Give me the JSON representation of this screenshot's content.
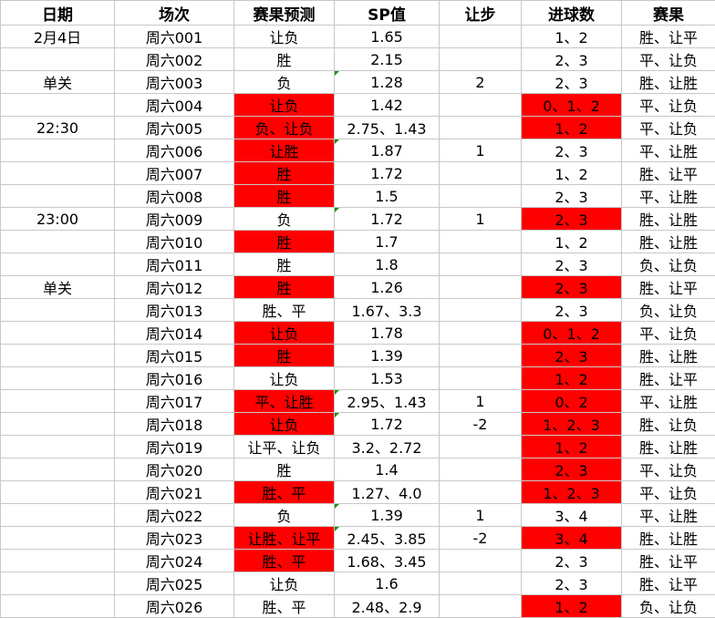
{
  "headers": [
    "日期",
    "场次",
    "赛果预测",
    "SP值",
    "让步",
    "进球数",
    "赛果"
  ],
  "highlight_color": "#ff0000",
  "rows": [
    {
      "date": "2月4日",
      "match": "周六001",
      "pred": "让负",
      "sp": "1.65",
      "hcp": "",
      "goals": "1、2",
      "result": "胜、让平"
    },
    {
      "date": "",
      "match": "周六002",
      "pred": "胜",
      "sp": "2.15",
      "hcp": "",
      "goals": "2、3",
      "result": "平、让负"
    },
    {
      "date": "单关",
      "match": "周六003",
      "pred": "负",
      "sp": "1.28",
      "hcp": "2",
      "goals": "2、3",
      "result": "胜、让胜"
    },
    {
      "date": "",
      "match": "周六004",
      "pred": "让负",
      "sp": "1.42",
      "hcp": "",
      "goals": "0、1、2",
      "result": "平、让负"
    },
    {
      "date": "22:30",
      "match": "周六005",
      "pred": "负、让负",
      "sp": "2.75、1.43",
      "hcp": "",
      "goals": "1、2",
      "result": "平、让负"
    },
    {
      "date": "",
      "match": "周六006",
      "pred": "让胜",
      "sp": "1.87",
      "hcp": "1",
      "goals": "2、3",
      "result": "平、让胜"
    },
    {
      "date": "",
      "match": "周六007",
      "pred": "胜",
      "sp": "1.72",
      "hcp": "",
      "goals": "1、2",
      "result": "胜、让平"
    },
    {
      "date": "",
      "match": "周六008",
      "pred": "胜",
      "sp": "1.5",
      "hcp": "",
      "goals": "2、3",
      "result": "平、让胜"
    },
    {
      "date": "23:00",
      "match": "周六009",
      "pred": "负",
      "sp": "1.72",
      "hcp": "1",
      "goals": "2、3",
      "result": "胜、让胜"
    },
    {
      "date": "",
      "match": "周六010",
      "pred": "胜",
      "sp": "1.7",
      "hcp": "",
      "goals": "1、2",
      "result": "胜、让胜"
    },
    {
      "date": "",
      "match": "周六011",
      "pred": "胜",
      "sp": "1.8",
      "hcp": "",
      "goals": "2、3",
      "result": "负、让负"
    },
    {
      "date": "单关",
      "match": "周六012",
      "pred": "胜",
      "sp": "1.26",
      "hcp": "",
      "goals": "2、3",
      "result": "胜、让平"
    },
    {
      "date": "",
      "match": "周六013",
      "pred": "胜、平",
      "sp": "1.67、3.3",
      "hcp": "",
      "goals": "2、3",
      "result": "负、让负"
    },
    {
      "date": "",
      "match": "周六014",
      "pred": "让负",
      "sp": "1.78",
      "hcp": "",
      "goals": "0、1、2",
      "result": "平、让负"
    },
    {
      "date": "",
      "match": "周六015",
      "pred": "胜",
      "sp": "1.39",
      "hcp": "",
      "goals": "2、3",
      "result": "胜、让胜"
    },
    {
      "date": "",
      "match": "周六016",
      "pred": "让负",
      "sp": "1.53",
      "hcp": "",
      "goals": "1、2",
      "result": "胜、让平"
    },
    {
      "date": "",
      "match": "周六017",
      "pred": "平、让胜",
      "sp": "2.95、1.43",
      "hcp": "1",
      "goals": "0、2",
      "result": "平、让胜"
    },
    {
      "date": "",
      "match": "周六018",
      "pred": "让负",
      "sp": "1.72",
      "hcp": "-2",
      "goals": "1、2、3",
      "result": "胜、让负"
    },
    {
      "date": "",
      "match": "周六019",
      "pred": "让平、让负",
      "sp": "3.2、2.72",
      "hcp": "",
      "goals": "1、2",
      "result": "胜、让胜"
    },
    {
      "date": "",
      "match": "周六020",
      "pred": "胜",
      "sp": "1.4",
      "hcp": "",
      "goals": "2、3",
      "result": "平、让负"
    },
    {
      "date": "",
      "match": "周六021",
      "pred": "胜、平",
      "sp": "1.27、4.0",
      "hcp": "",
      "goals": "1、2、3",
      "result": "平、让负"
    },
    {
      "date": "",
      "match": "周六022",
      "pred": "负",
      "sp": "1.39",
      "hcp": "1",
      "goals": "3、4",
      "result": "平、让胜"
    },
    {
      "date": "",
      "match": "周六023",
      "pred": "让胜、让平",
      "sp": "2.45、3.85",
      "hcp": "-2",
      "goals": "3、4",
      "result": "胜、让胜"
    },
    {
      "date": "",
      "match": "周六024",
      "pred": "胜、平",
      "sp": "1.68、3.45",
      "hcp": "",
      "goals": "2、3",
      "result": "胜、让平"
    },
    {
      "date": "",
      "match": "周六025",
      "pred": "让负",
      "sp": "1.6",
      "hcp": "",
      "goals": "2、3",
      "result": "胜、让平"
    },
    {
      "date": "",
      "match": "周六026",
      "pred": "胜、平",
      "sp": "2.48、2.9",
      "hcp": "",
      "goals": "1、2",
      "result": "负、让负"
    }
  ],
  "pred_highlight": [
    false,
    false,
    false,
    true,
    true,
    true,
    true,
    true,
    false,
    true,
    false,
    true,
    false,
    true,
    true,
    false,
    true,
    true,
    false,
    false,
    true,
    false,
    true,
    true,
    false,
    false
  ],
  "goals_highlight": [
    false,
    false,
    false,
    true,
    true,
    false,
    false,
    false,
    true,
    false,
    false,
    true,
    false,
    true,
    true,
    true,
    true,
    true,
    true,
    true,
    true,
    false,
    true,
    false,
    false,
    true
  ],
  "sp_marker": [
    false,
    false,
    true,
    false,
    false,
    true,
    false,
    false,
    true,
    false,
    false,
    false,
    false,
    false,
    false,
    false,
    true,
    true,
    false,
    false,
    false,
    true,
    true,
    false,
    false,
    false
  ]
}
